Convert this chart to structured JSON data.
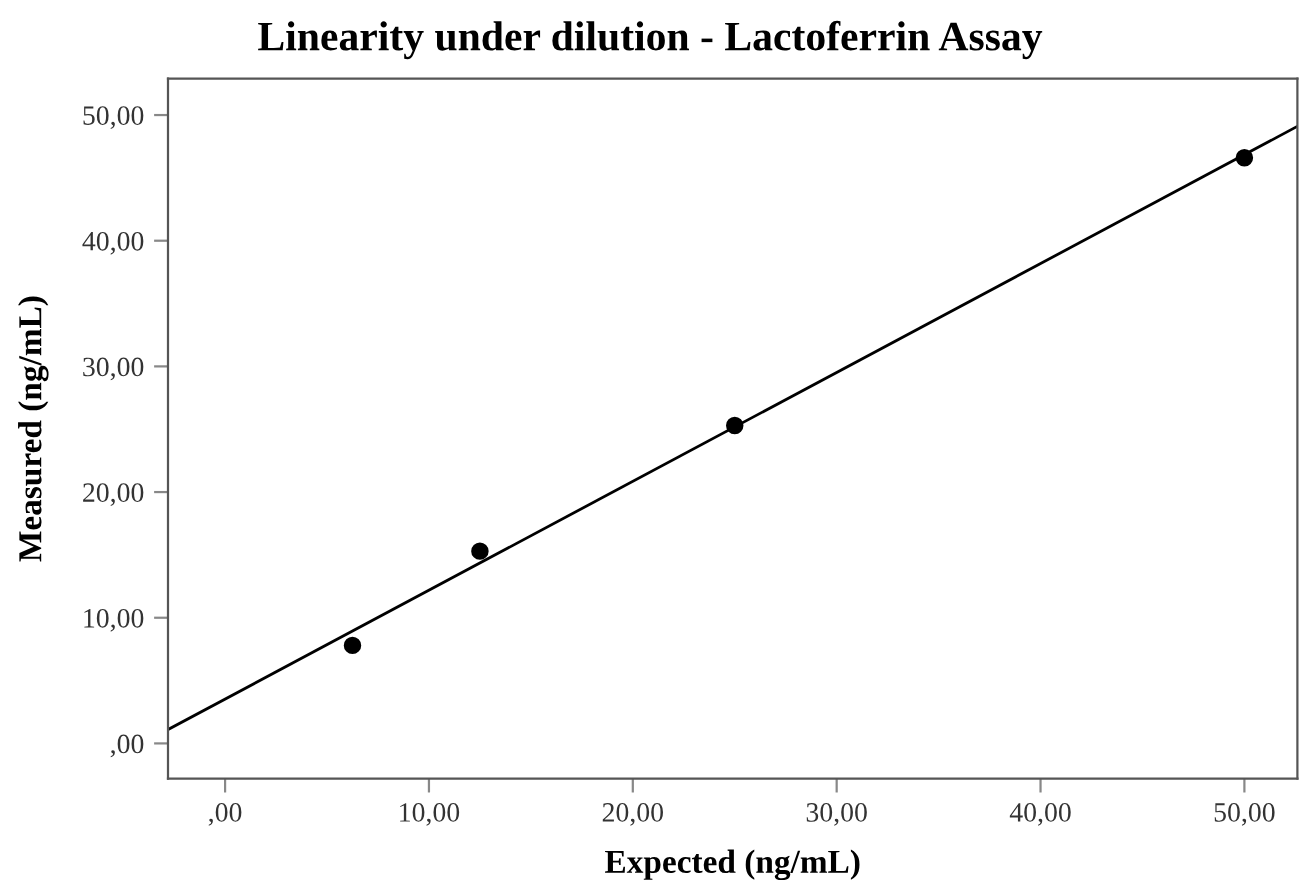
{
  "chart_data": {
    "type": "scatter",
    "title": "Linearity under dilution - Lactoferrin Assay",
    "xlabel": "Expected (ng/mL)",
    "ylabel": "Measured (ng/mL)",
    "xlim": [
      -2.8,
      52.6
    ],
    "ylim": [
      -2.8,
      52.9
    ],
    "xticks": [
      {
        "value": 0,
        "label": ",00"
      },
      {
        "value": 10,
        "label": "10,00"
      },
      {
        "value": 20,
        "label": "20,00"
      },
      {
        "value": 30,
        "label": "30,00"
      },
      {
        "value": 40,
        "label": "40,00"
      },
      {
        "value": 50,
        "label": "50,00"
      }
    ],
    "yticks": [
      {
        "value": 0,
        "label": ",00"
      },
      {
        "value": 10,
        "label": "10,00"
      },
      {
        "value": 20,
        "label": "20,00"
      },
      {
        "value": 30,
        "label": "30,00"
      },
      {
        "value": 40,
        "label": "40,00"
      },
      {
        "value": 50,
        "label": "50,00"
      }
    ],
    "grid": false,
    "legend": false,
    "series": [
      {
        "color": "#000000",
        "marker": "circle",
        "x": [
          6.25,
          12.5,
          25,
          50
        ],
        "values": [
          7.8,
          15.3,
          25.3,
          46.6
        ]
      },
      {
        "type": "line",
        "color": "#000000",
        "line_style": "solid",
        "marker": "none",
        "x": [
          -2.8,
          52.6
        ],
        "values": [
          1.1,
          49.1
        ]
      }
    ]
  }
}
